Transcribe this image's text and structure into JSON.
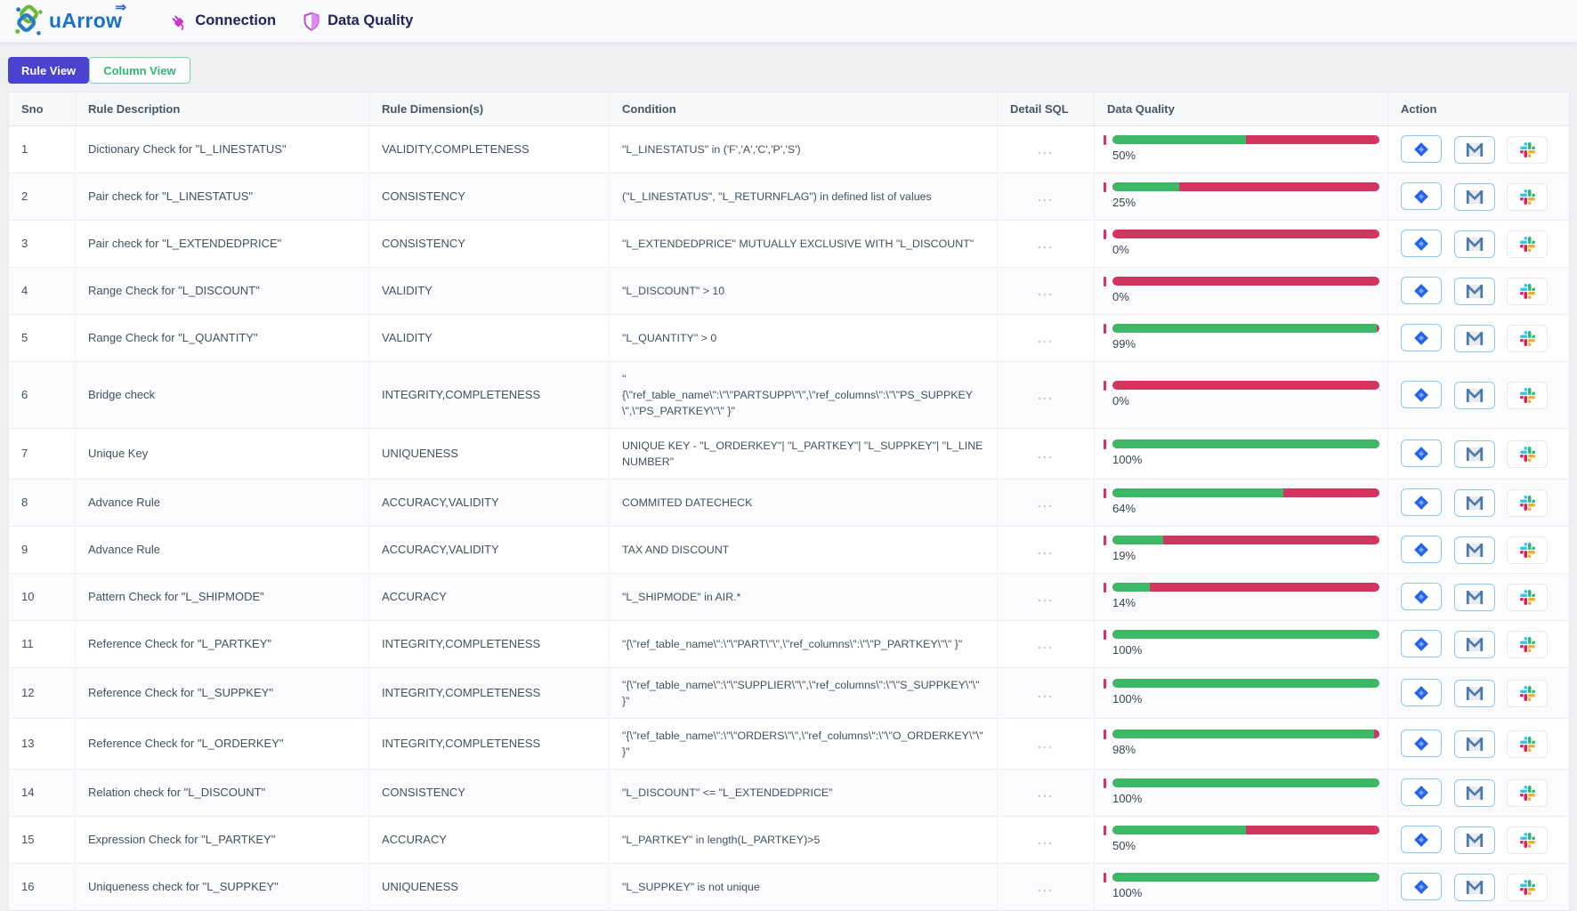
{
  "header": {
    "logo_text": "uArrow",
    "logo_arrow": "⇒",
    "nav": [
      {
        "label": "Connection",
        "icon": "plug-icon"
      },
      {
        "label": "Data Quality",
        "icon": "shield-icon"
      }
    ]
  },
  "tabs": [
    {
      "label": "Rule View",
      "active": true
    },
    {
      "label": "Column View",
      "active": false
    }
  ],
  "table": {
    "columns": [
      "Sno",
      "Rule Description",
      "Rule Dimension(s)",
      "Condition",
      "Detail SQL",
      "Data Quality",
      "Action"
    ],
    "detail_sql_label": "...",
    "action_icons": [
      "jira-icon",
      "gmail-icon",
      "slack-icon"
    ],
    "rows": [
      {
        "sno": "1",
        "description": "Dictionary Check for \"L_LINESTATUS\"",
        "dimensions": "VALIDITY,COMPLETENESS",
        "condition": "\"L_LINESTATUS\" in ('F','A','C','P','S')",
        "quality_pct": 50
      },
      {
        "sno": "2",
        "description": "Pair check for \"L_LINESTATUS\"",
        "dimensions": "CONSISTENCY",
        "condition": "(\"L_LINESTATUS\", \"L_RETURNFLAG\") in defined list of values",
        "quality_pct": 25
      },
      {
        "sno": "3",
        "description": "Pair check for \"L_EXTENDEDPRICE\"",
        "dimensions": "CONSISTENCY",
        "condition": "\"L_EXTENDEDPRICE\" MUTUALLY EXCLUSIVE WITH \"L_DISCOUNT\"",
        "quality_pct": 0
      },
      {
        "sno": "4",
        "description": "Range Check for \"L_DISCOUNT\"",
        "dimensions": "VALIDITY",
        "condition": "\"L_DISCOUNT\" > 10",
        "quality_pct": 0
      },
      {
        "sno": "5",
        "description": "Range Check for \"L_QUANTITY\"",
        "dimensions": "VALIDITY",
        "condition": "\"L_QUANTITY\" > 0",
        "quality_pct": 99
      },
      {
        "sno": "6",
        "description": "Bridge check",
        "dimensions": "INTEGRITY,COMPLETENESS",
        "condition": "\"\n{\\\"ref_table_name\\\":\\\"\\\"PARTSUPP\\\"\\\",\\\"ref_columns\\\":\\\"\\\"PS_SUPPKEY\\\",\\\"PS_PARTKEY\\\"\\\" }\"",
        "quality_pct": 0
      },
      {
        "sno": "7",
        "description": "Unique Key",
        "dimensions": "UNIQUENESS",
        "condition": "UNIQUE KEY - \"L_ORDERKEY\"| \"L_PARTKEY\"| \"L_SUPPKEY\"| \"L_LINENUMBER\"",
        "quality_pct": 100
      },
      {
        "sno": "8",
        "description": "Advance Rule",
        "dimensions": "ACCURACY,VALIDITY",
        "condition": "COMMITED DATECHECK",
        "quality_pct": 64
      },
      {
        "sno": "9",
        "description": "Advance Rule",
        "dimensions": "ACCURACY,VALIDITY",
        "condition": "TAX AND DISCOUNT",
        "quality_pct": 19
      },
      {
        "sno": "10",
        "description": "Pattern Check for \"L_SHIPMODE\"",
        "dimensions": "ACCURACY",
        "condition": "\"L_SHIPMODE\" in AIR.*",
        "quality_pct": 14
      },
      {
        "sno": "11",
        "description": "Reference Check for \"L_PARTKEY\"",
        "dimensions": "INTEGRITY,COMPLETENESS",
        "condition": "\"{\\\"ref_table_name\\\":\\\"\\\"PART\\\"\\\",\\\"ref_columns\\\":\\\"\\\"P_PARTKEY\\\"\\\" }\"",
        "quality_pct": 100
      },
      {
        "sno": "12",
        "description": "Reference Check for \"L_SUPPKEY\"",
        "dimensions": "INTEGRITY,COMPLETENESS",
        "condition": "\"{\\\"ref_table_name\\\":\\\"\\\"SUPPLIER\\\"\\\",\\\"ref_columns\\\":\\\"\\\"S_SUPPKEY\\\"\\\" }\"",
        "quality_pct": 100
      },
      {
        "sno": "13",
        "description": "Reference Check for \"L_ORDERKEY\"",
        "dimensions": "INTEGRITY,COMPLETENESS",
        "condition": "\"{\\\"ref_table_name\\\":\\\"\\\"ORDERS\\\"\\\",\\\"ref_columns\\\":\\\"\\\"O_ORDERKEY\\\"\\\" }\"",
        "quality_pct": 98
      },
      {
        "sno": "14",
        "description": "Relation check for \"L_DISCOUNT\"",
        "dimensions": "CONSISTENCY",
        "condition": "\"L_DISCOUNT\" <= \"L_EXTENDEDPRICE\"",
        "quality_pct": 100
      },
      {
        "sno": "15",
        "description": "Expression Check for \"L_PARTKEY\"",
        "dimensions": "ACCURACY",
        "condition": "\"L_PARTKEY\" in length(L_PARTKEY)>5",
        "quality_pct": 50
      },
      {
        "sno": "16",
        "description": "Uniqueness check for \"L_SUPPKEY\"",
        "dimensions": "UNIQUENESS",
        "condition": "\"L_SUPPKEY\" is not unique",
        "quality_pct": 100
      }
    ]
  },
  "colors": {
    "tab_active_bg": "#4b43ce",
    "tab_inactive_text": "#2eb872",
    "progress_green": "#3db866",
    "progress_red": "#d2365f",
    "accent_blue": "#1c72c2",
    "jira_blue": "#2465eb",
    "nav_text": "#23235c"
  }
}
